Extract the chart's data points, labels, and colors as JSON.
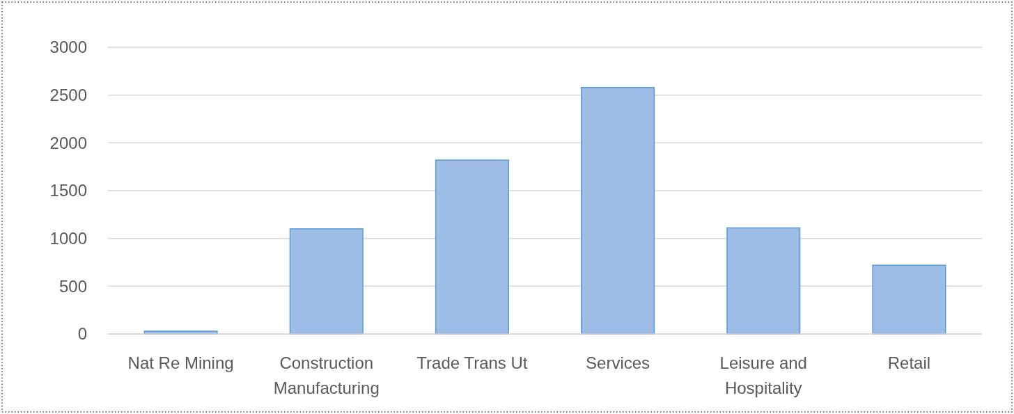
{
  "chart_data": {
    "type": "bar",
    "categories": [
      "Nat Re Mining",
      "Construction Manufacturing",
      "Trade Trans Ut",
      "Services",
      "Leisure and Hospitality",
      "Retail"
    ],
    "values": [
      30,
      1100,
      1820,
      2580,
      1110,
      720
    ],
    "color": "#9dbde6",
    "ylim": [
      0,
      3000
    ],
    "yticks": [
      0,
      500,
      1000,
      1500,
      2000,
      2500,
      3000
    ],
    "grid": "y"
  }
}
